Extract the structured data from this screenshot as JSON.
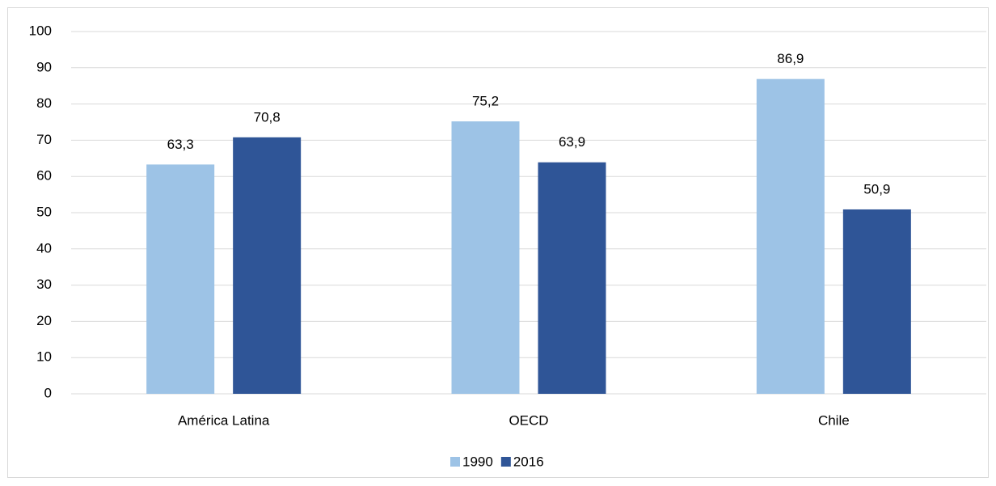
{
  "chart_data": {
    "type": "bar",
    "categories": [
      "América Latina",
      "OECD",
      "Chile"
    ],
    "series": [
      {
        "name": "1990",
        "color": "#9dc3e6",
        "values": [
          63.3,
          75.2,
          86.9
        ],
        "value_labels": [
          "63,3",
          "75,2",
          "86,9"
        ]
      },
      {
        "name": "2016",
        "color": "#2f5597",
        "values": [
          70.8,
          63.9,
          50.9
        ],
        "value_labels": [
          "70,8",
          "63,9",
          "50,9"
        ]
      }
    ],
    "ylim": [
      0,
      100
    ],
    "yticks": [
      0,
      10,
      20,
      30,
      40,
      50,
      60,
      70,
      80,
      90,
      100
    ],
    "grid": true,
    "legend": "bottom"
  }
}
